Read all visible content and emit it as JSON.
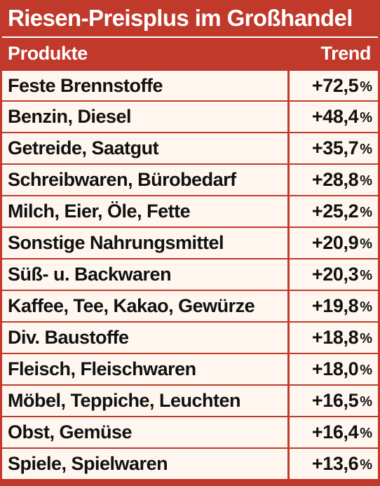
{
  "title": "Riesen-Preisplus im Großhandel",
  "colors": {
    "accent": "#c0392b",
    "row_background": "#fff6ef",
    "text": "#111111"
  },
  "table": {
    "header_product": "Produkte",
    "header_trend": "Trend",
    "unit": "%"
  },
  "chart_data": {
    "type": "table",
    "title": "Riesen-Preisplus im Großhandel",
    "columns": [
      "Produkte",
      "Trend"
    ],
    "rows": [
      {
        "product": "Feste Brennstoffe",
        "trend": "+72,5",
        "value": 72.5
      },
      {
        "product": "Benzin, Diesel",
        "trend": "+48,4",
        "value": 48.4
      },
      {
        "product": "Getreide, Saatgut",
        "trend": "+35,7",
        "value": 35.7
      },
      {
        "product": "Schreibwaren, Bürobedarf",
        "trend": "+28,8",
        "value": 28.8
      },
      {
        "product": "Milch, Eier, Öle, Fette",
        "trend": "+25,2",
        "value": 25.2
      },
      {
        "product": "Sonstige Nahrungsmittel",
        "trend": "+20,9",
        "value": 20.9
      },
      {
        "product": "Süß- u. Backwaren",
        "trend": "+20,3",
        "value": 20.3
      },
      {
        "product": "Kaffee, Tee, Kakao, Gewürze",
        "trend": "+19,8",
        "value": 19.8
      },
      {
        "product": "Div. Baustoffe",
        "trend": "+18,8",
        "value": 18.8
      },
      {
        "product": "Fleisch, Fleischwaren",
        "trend": "+18,0",
        "value": 18.0
      },
      {
        "product": "Möbel, Teppiche, Leuchten",
        "trend": "+16,5",
        "value": 16.5
      },
      {
        "product": "Obst, Gemüse",
        "trend": "+16,4",
        "value": 16.4
      },
      {
        "product": "Spiele, Spielwaren",
        "trend": "+13,6",
        "value": 13.6
      }
    ]
  }
}
